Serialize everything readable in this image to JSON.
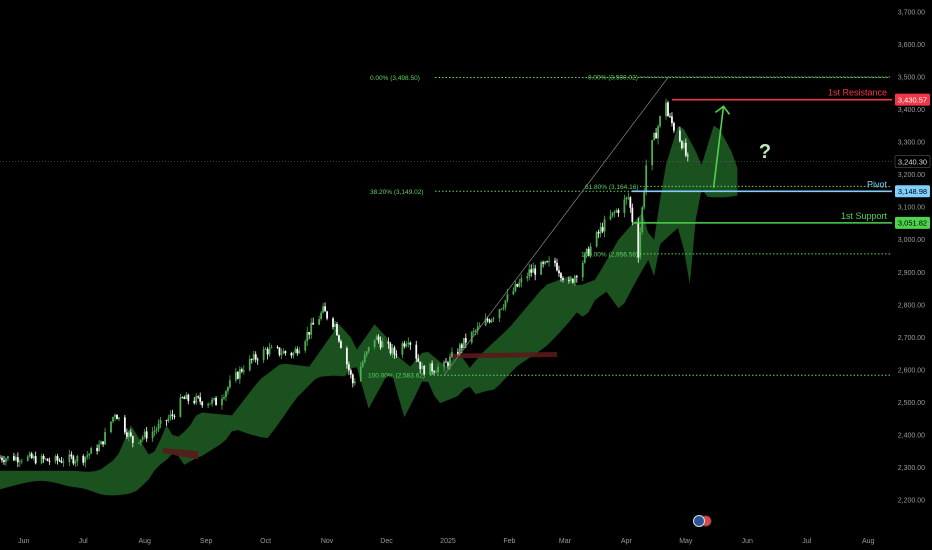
{
  "chart_data": {
    "type": "candlestick",
    "y_axis": {
      "ticks": [
        "3,700.00",
        "3,600.00",
        "3,500.00",
        "3,400.00",
        "3,300.00",
        "3,200.00",
        "3,100.00",
        "3,000.00",
        "2,900.00",
        "2,800.00",
        "2,700.00",
        "2,600.00",
        "2,500.00",
        "2,400.00",
        "2,300.00",
        "2,200.00"
      ],
      "range": [
        2150,
        3720
      ]
    },
    "x_axis": {
      "ticks": [
        "Jun",
        "Jul",
        "Aug",
        "Sep",
        "Oct",
        "Nov",
        "Dec",
        "2025",
        "Feb",
        "Mar",
        "Apr",
        "May",
        "Jun",
        "Jul",
        "Aug"
      ]
    },
    "close_series": [
      [
        "2024-06-01",
        2330
      ],
      [
        "2024-06-15",
        2320
      ],
      [
        "2024-07-01",
        2330
      ],
      [
        "2024-07-10",
        2370
      ],
      [
        "2024-07-17",
        2470
      ],
      [
        "2024-07-26",
        2380
      ],
      [
        "2024-08-05",
        2410
      ],
      [
        "2024-08-15",
        2460
      ],
      [
        "2024-08-20",
        2510
      ],
      [
        "2024-09-06",
        2500
      ],
      [
        "2024-09-20",
        2610
      ],
      [
        "2024-10-01",
        2660
      ],
      [
        "2024-10-15",
        2650
      ],
      [
        "2024-10-30",
        2780
      ],
      [
        "2024-11-05",
        2740
      ],
      [
        "2024-11-14",
        2560
      ],
      [
        "2024-11-25",
        2700
      ],
      [
        "2024-12-05",
        2650
      ],
      [
        "2024-12-12",
        2700
      ],
      [
        "2024-12-19",
        2600
      ],
      [
        "2024-12-30",
        2610
      ],
      [
        "2025-01-10",
        2690
      ],
      [
        "2025-01-24",
        2770
      ],
      [
        "2025-02-11",
        2900
      ],
      [
        "2025-02-24",
        2930
      ],
      [
        "2025-03-03",
        2860
      ],
      [
        "2025-03-20",
        3040
      ],
      [
        "2025-04-02",
        3130
      ],
      [
        "2025-04-07",
        2960
      ],
      [
        "2025-04-11",
        3230
      ],
      [
        "2025-04-21",
        3430
      ],
      [
        "2025-04-22",
        3380
      ],
      [
        "2025-04-29",
        3300
      ],
      [
        "2025-05-02",
        3240
      ]
    ],
    "levels": [
      {
        "name": "1st Resistance",
        "value": 3430.57,
        "label": "3,430.57",
        "color": "#f23645"
      },
      {
        "name": "Pivot",
        "value": 3148.98,
        "label": "3,148.98",
        "color": "#7fd0ff"
      },
      {
        "name": "1st Support",
        "value": 3051.82,
        "label": "3,051.82",
        "color": "#4cd44c"
      }
    ],
    "current_price": {
      "value": 3240.3,
      "label": "3,240.30"
    },
    "fib_left": [
      {
        "label": "0.00% (3,498.50)",
        "value": 3498.5
      },
      {
        "label": "38.20% (3,149.02)",
        "value": 3149.02
      },
      {
        "label": "100.00% (2,583.62)",
        "value": 2583.62
      }
    ],
    "fib_right": [
      {
        "label": "0.00% (3,500.02)",
        "value": 3500.02
      },
      {
        "label": "61.80% (3,164.16)",
        "value": 3164.16
      },
      {
        "label": "100.00% (2,956.56)",
        "value": 2956.56
      }
    ],
    "annotation": "?",
    "colors": {
      "up": "#4caf50",
      "down": "#ffffff",
      "cloud": "#1e5f25",
      "cloud_red": "#5a1a1a",
      "fib": "#5fd35f"
    }
  }
}
